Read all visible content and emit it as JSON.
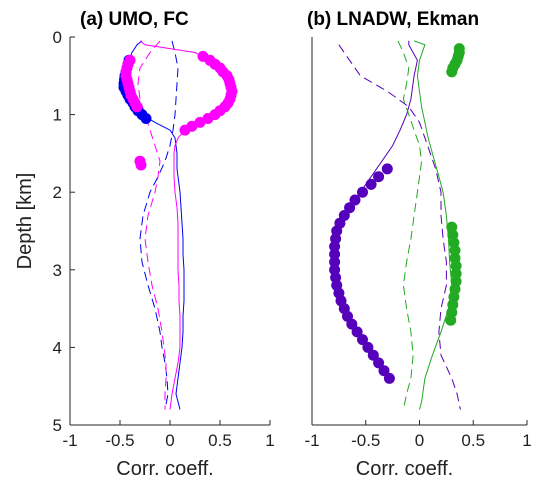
{
  "chart_data": [
    {
      "type": "line",
      "title": "(a) UMO, FC",
      "xlabel": "Corr. coeff.",
      "ylabel": "Depth [km]",
      "xlim": [
        -1,
        1
      ],
      "ylim": [
        5,
        0
      ],
      "xticks": [
        "-1",
        "-0.5",
        "0",
        "0.5",
        "1"
      ],
      "yticks": [
        "0",
        "1",
        "2",
        "3",
        "4",
        "5"
      ],
      "series": [
        {
          "color": "#0000ee",
          "style": "solid",
          "depth": [
            0.05,
            0.1,
            0.2,
            0.3,
            0.4,
            0.5,
            0.6,
            0.7,
            0.8,
            0.9,
            1.0,
            1.1,
            1.2,
            1.3,
            1.4,
            1.5,
            1.6,
            1.7,
            1.8,
            1.9,
            2.0,
            2.2,
            2.4,
            2.6,
            2.8,
            3.0,
            3.2,
            3.4,
            3.6,
            3.8,
            4.0,
            4.2,
            4.4,
            4.6,
            4.7,
            4.8
          ],
          "corr": [
            -0.28,
            -0.33,
            -0.38,
            -0.41,
            -0.43,
            -0.45,
            -0.46,
            -0.44,
            -0.4,
            -0.35,
            -0.28,
            -0.15,
            0.0,
            0.05,
            0.06,
            0.07,
            0.07,
            0.07,
            0.08,
            0.09,
            0.1,
            0.11,
            0.12,
            0.13,
            0.13,
            0.14,
            0.14,
            0.14,
            0.13,
            0.13,
            0.12,
            0.1,
            0.08,
            0.06,
            0.08,
            0.1
          ]
        },
        {
          "color": "#0000ee",
          "style": "dashed",
          "depth": [
            0.05,
            0.2,
            0.4,
            0.6,
            0.8,
            1.0,
            1.2,
            1.4,
            1.6,
            1.8,
            2.0,
            2.3,
            2.6,
            2.9,
            3.2,
            3.5,
            3.8,
            4.0,
            4.2,
            4.4,
            4.6,
            4.8
          ],
          "corr": [
            0.02,
            0.05,
            0.08,
            0.07,
            0.06,
            0.05,
            0.03,
            0.0,
            -0.05,
            -0.12,
            -0.2,
            -0.27,
            -0.3,
            -0.28,
            -0.22,
            -0.15,
            -0.1,
            -0.08,
            -0.05,
            -0.03,
            -0.02,
            -0.05
          ]
        },
        {
          "color": "#ff00ff",
          "style": "solid",
          "depth": [
            0.05,
            0.1,
            0.2,
            0.3,
            0.4,
            0.5,
            0.6,
            0.7,
            0.8,
            0.9,
            1.0,
            1.1,
            1.2,
            1.3,
            1.4,
            1.5,
            1.6,
            1.8,
            2.0,
            2.2,
            2.4,
            2.6,
            2.8,
            3.0,
            3.2,
            3.4,
            3.6,
            3.8,
            4.0,
            4.2,
            4.4,
            4.6,
            4.8
          ],
          "corr": [
            -0.3,
            -0.25,
            0.25,
            0.4,
            0.5,
            0.57,
            0.6,
            0.62,
            0.6,
            0.55,
            0.45,
            0.3,
            0.15,
            0.08,
            0.05,
            0.04,
            0.04,
            0.04,
            0.05,
            0.07,
            0.08,
            0.08,
            0.08,
            0.08,
            0.09,
            0.09,
            0.1,
            0.1,
            0.1,
            0.08,
            0.05,
            0.02,
            0.0
          ]
        },
        {
          "color": "#ff00ff",
          "style": "dashed",
          "depth": [
            0.05,
            0.2,
            0.4,
            0.6,
            0.8,
            1.0,
            1.2,
            1.4,
            1.6,
            1.8,
            2.0,
            2.3,
            2.6,
            2.9,
            3.2,
            3.5,
            3.8,
            4.0,
            4.2,
            4.4,
            4.6,
            4.8
          ],
          "corr": [
            -0.1,
            -0.2,
            -0.3,
            -0.32,
            -0.3,
            -0.25,
            -0.2,
            -0.15,
            -0.1,
            -0.12,
            -0.15,
            -0.22,
            -0.25,
            -0.22,
            -0.18,
            -0.12,
            -0.08,
            -0.06,
            -0.04,
            -0.04,
            -0.05,
            -0.05
          ]
        }
      ],
      "significant": [
        {
          "color": "#0000ee",
          "depth": [
            0.3,
            0.35,
            0.4,
            0.45,
            0.5,
            0.55,
            0.6,
            0.65,
            0.7,
            0.75,
            0.8,
            0.85,
            0.9,
            0.95,
            1.0,
            1.05
          ],
          "corr": [
            -0.41,
            -0.42,
            -0.43,
            -0.44,
            -0.45,
            -0.455,
            -0.46,
            -0.46,
            -0.44,
            -0.42,
            -0.4,
            -0.37,
            -0.35,
            -0.32,
            -0.28,
            -0.24
          ]
        },
        {
          "color": "#ff00ff",
          "depth": [
            0.25,
            0.3,
            0.35,
            0.4,
            0.45,
            0.5,
            0.55,
            0.6,
            0.65,
            0.7,
            0.75,
            0.8,
            0.85,
            0.9,
            0.95,
            1.0,
            1.05,
            1.1,
            1.15,
            1.2
          ],
          "corr": [
            0.33,
            0.4,
            0.45,
            0.5,
            0.53,
            0.57,
            0.59,
            0.6,
            0.61,
            0.62,
            0.61,
            0.6,
            0.58,
            0.55,
            0.5,
            0.45,
            0.38,
            0.3,
            0.22,
            0.15
          ]
        },
        {
          "color": "#ff00ff",
          "depth": [
            0.3,
            0.35,
            0.4,
            0.45,
            0.5,
            0.55,
            0.6,
            0.65,
            0.7,
            0.75,
            0.8,
            0.85,
            0.9
          ],
          "corr": [
            -0.4,
            -0.42,
            -0.43,
            -0.44,
            -0.44,
            -0.43,
            -0.42,
            -0.41,
            -0.4,
            -0.39,
            -0.37,
            -0.35,
            -0.33
          ]
        },
        {
          "color": "#ff00ff",
          "depth": [
            1.6,
            1.65
          ],
          "corr": [
            -0.3,
            -0.29
          ]
        }
      ]
    },
    {
      "type": "line",
      "title": "(b) LNADW, Ekman",
      "xlabel": "Corr. coeff.",
      "ylabel": "",
      "xlim": [
        -1,
        1
      ],
      "ylim": [
        5,
        0
      ],
      "xticks": [
        "-1",
        "-0.5",
        "0",
        "0.5",
        "1"
      ],
      "yticks": [],
      "series": [
        {
          "color": "#5500bb",
          "style": "solid",
          "depth": [
            0.05,
            0.1,
            0.3,
            0.5,
            0.8,
            1.0,
            1.2,
            1.4,
            1.6,
            1.8,
            2.0,
            2.2,
            2.4,
            2.6,
            2.8,
            3.0,
            3.2,
            3.4,
            3.6,
            3.8,
            4.0,
            4.2,
            4.4
          ],
          "corr": [
            -0.1,
            -0.1,
            -0.02,
            -0.05,
            -0.08,
            -0.12,
            -0.18,
            -0.25,
            -0.35,
            -0.45,
            -0.55,
            -0.65,
            -0.72,
            -0.77,
            -0.78,
            -0.78,
            -0.77,
            -0.73,
            -0.67,
            -0.58,
            -0.48,
            -0.38,
            -0.28
          ]
        },
        {
          "color": "#5500bb",
          "style": "dashed",
          "depth": [
            0.1,
            0.3,
            0.5,
            0.7,
            0.9,
            1.1,
            1.3,
            1.5,
            1.7,
            2.0,
            2.3,
            2.6,
            2.9,
            3.2,
            3.5,
            3.8,
            4.1,
            4.4,
            4.6,
            4.8
          ],
          "corr": [
            -0.75,
            -0.65,
            -0.55,
            -0.3,
            -0.1,
            0.0,
            0.05,
            0.1,
            0.15,
            0.2,
            0.2,
            0.22,
            0.25,
            0.25,
            0.2,
            0.18,
            0.2,
            0.3,
            0.35,
            0.38
          ]
        },
        {
          "color": "#22aa22",
          "style": "solid",
          "depth": [
            0.05,
            0.1,
            0.3,
            0.5,
            0.7,
            0.9,
            1.1,
            1.3,
            1.5,
            1.8,
            2.0,
            2.3,
            2.6,
            2.9,
            3.2,
            3.5,
            3.8,
            4.1,
            4.4,
            4.7,
            4.8
          ],
          "corr": [
            -0.05,
            0.05,
            0.0,
            -0.02,
            0.0,
            0.02,
            0.05,
            0.08,
            0.12,
            0.18,
            0.22,
            0.25,
            0.27,
            0.28,
            0.3,
            0.27,
            0.2,
            0.12,
            0.05,
            0.02,
            0.0
          ]
        },
        {
          "color": "#22aa22",
          "style": "dashed",
          "depth": [
            0.05,
            0.2,
            0.4,
            0.6,
            0.8,
            1.0,
            1.2,
            1.4,
            1.6,
            1.8,
            2.0,
            2.3,
            2.6,
            2.9,
            3.2,
            3.5,
            3.8,
            4.1,
            4.4,
            4.6,
            4.8
          ],
          "corr": [
            -0.2,
            -0.15,
            -0.1,
            -0.12,
            -0.15,
            -0.1,
            -0.05,
            0.0,
            0.02,
            0.0,
            -0.02,
            -0.05,
            -0.08,
            -0.12,
            -0.15,
            -0.12,
            -0.08,
            -0.06,
            -0.08,
            -0.12,
            -0.15
          ]
        }
      ],
      "significant": [
        {
          "color": "#5500bb",
          "depth": [
            1.7,
            1.8,
            1.9,
            2.0,
            2.1,
            2.2,
            2.3,
            2.4,
            2.5,
            2.6,
            2.7,
            2.8,
            2.9,
            3.0,
            3.1,
            3.2,
            3.3,
            3.4,
            3.5,
            3.6,
            3.7,
            3.8,
            3.9,
            4.0,
            4.1,
            4.2,
            4.3,
            4.4
          ],
          "corr": [
            -0.3,
            -0.38,
            -0.45,
            -0.53,
            -0.6,
            -0.65,
            -0.7,
            -0.74,
            -0.77,
            -0.78,
            -0.79,
            -0.79,
            -0.79,
            -0.79,
            -0.78,
            -0.77,
            -0.75,
            -0.73,
            -0.7,
            -0.67,
            -0.63,
            -0.58,
            -0.53,
            -0.48,
            -0.43,
            -0.38,
            -0.33,
            -0.28
          ]
        },
        {
          "color": "#22aa22",
          "depth": [
            2.45,
            2.55,
            2.65,
            2.75,
            2.85,
            2.95,
            3.05,
            3.15,
            3.25,
            3.35,
            3.45,
            3.55,
            3.65
          ],
          "corr": [
            0.3,
            0.31,
            0.32,
            0.33,
            0.33,
            0.34,
            0.34,
            0.34,
            0.33,
            0.32,
            0.31,
            0.3,
            0.29
          ]
        },
        {
          "color": "#22aa22",
          "depth": [
            0.15,
            0.2,
            0.25,
            0.3,
            0.35,
            0.4,
            0.45
          ],
          "corr": [
            0.37,
            0.37,
            0.36,
            0.35,
            0.33,
            0.31,
            0.3
          ]
        }
      ]
    }
  ]
}
